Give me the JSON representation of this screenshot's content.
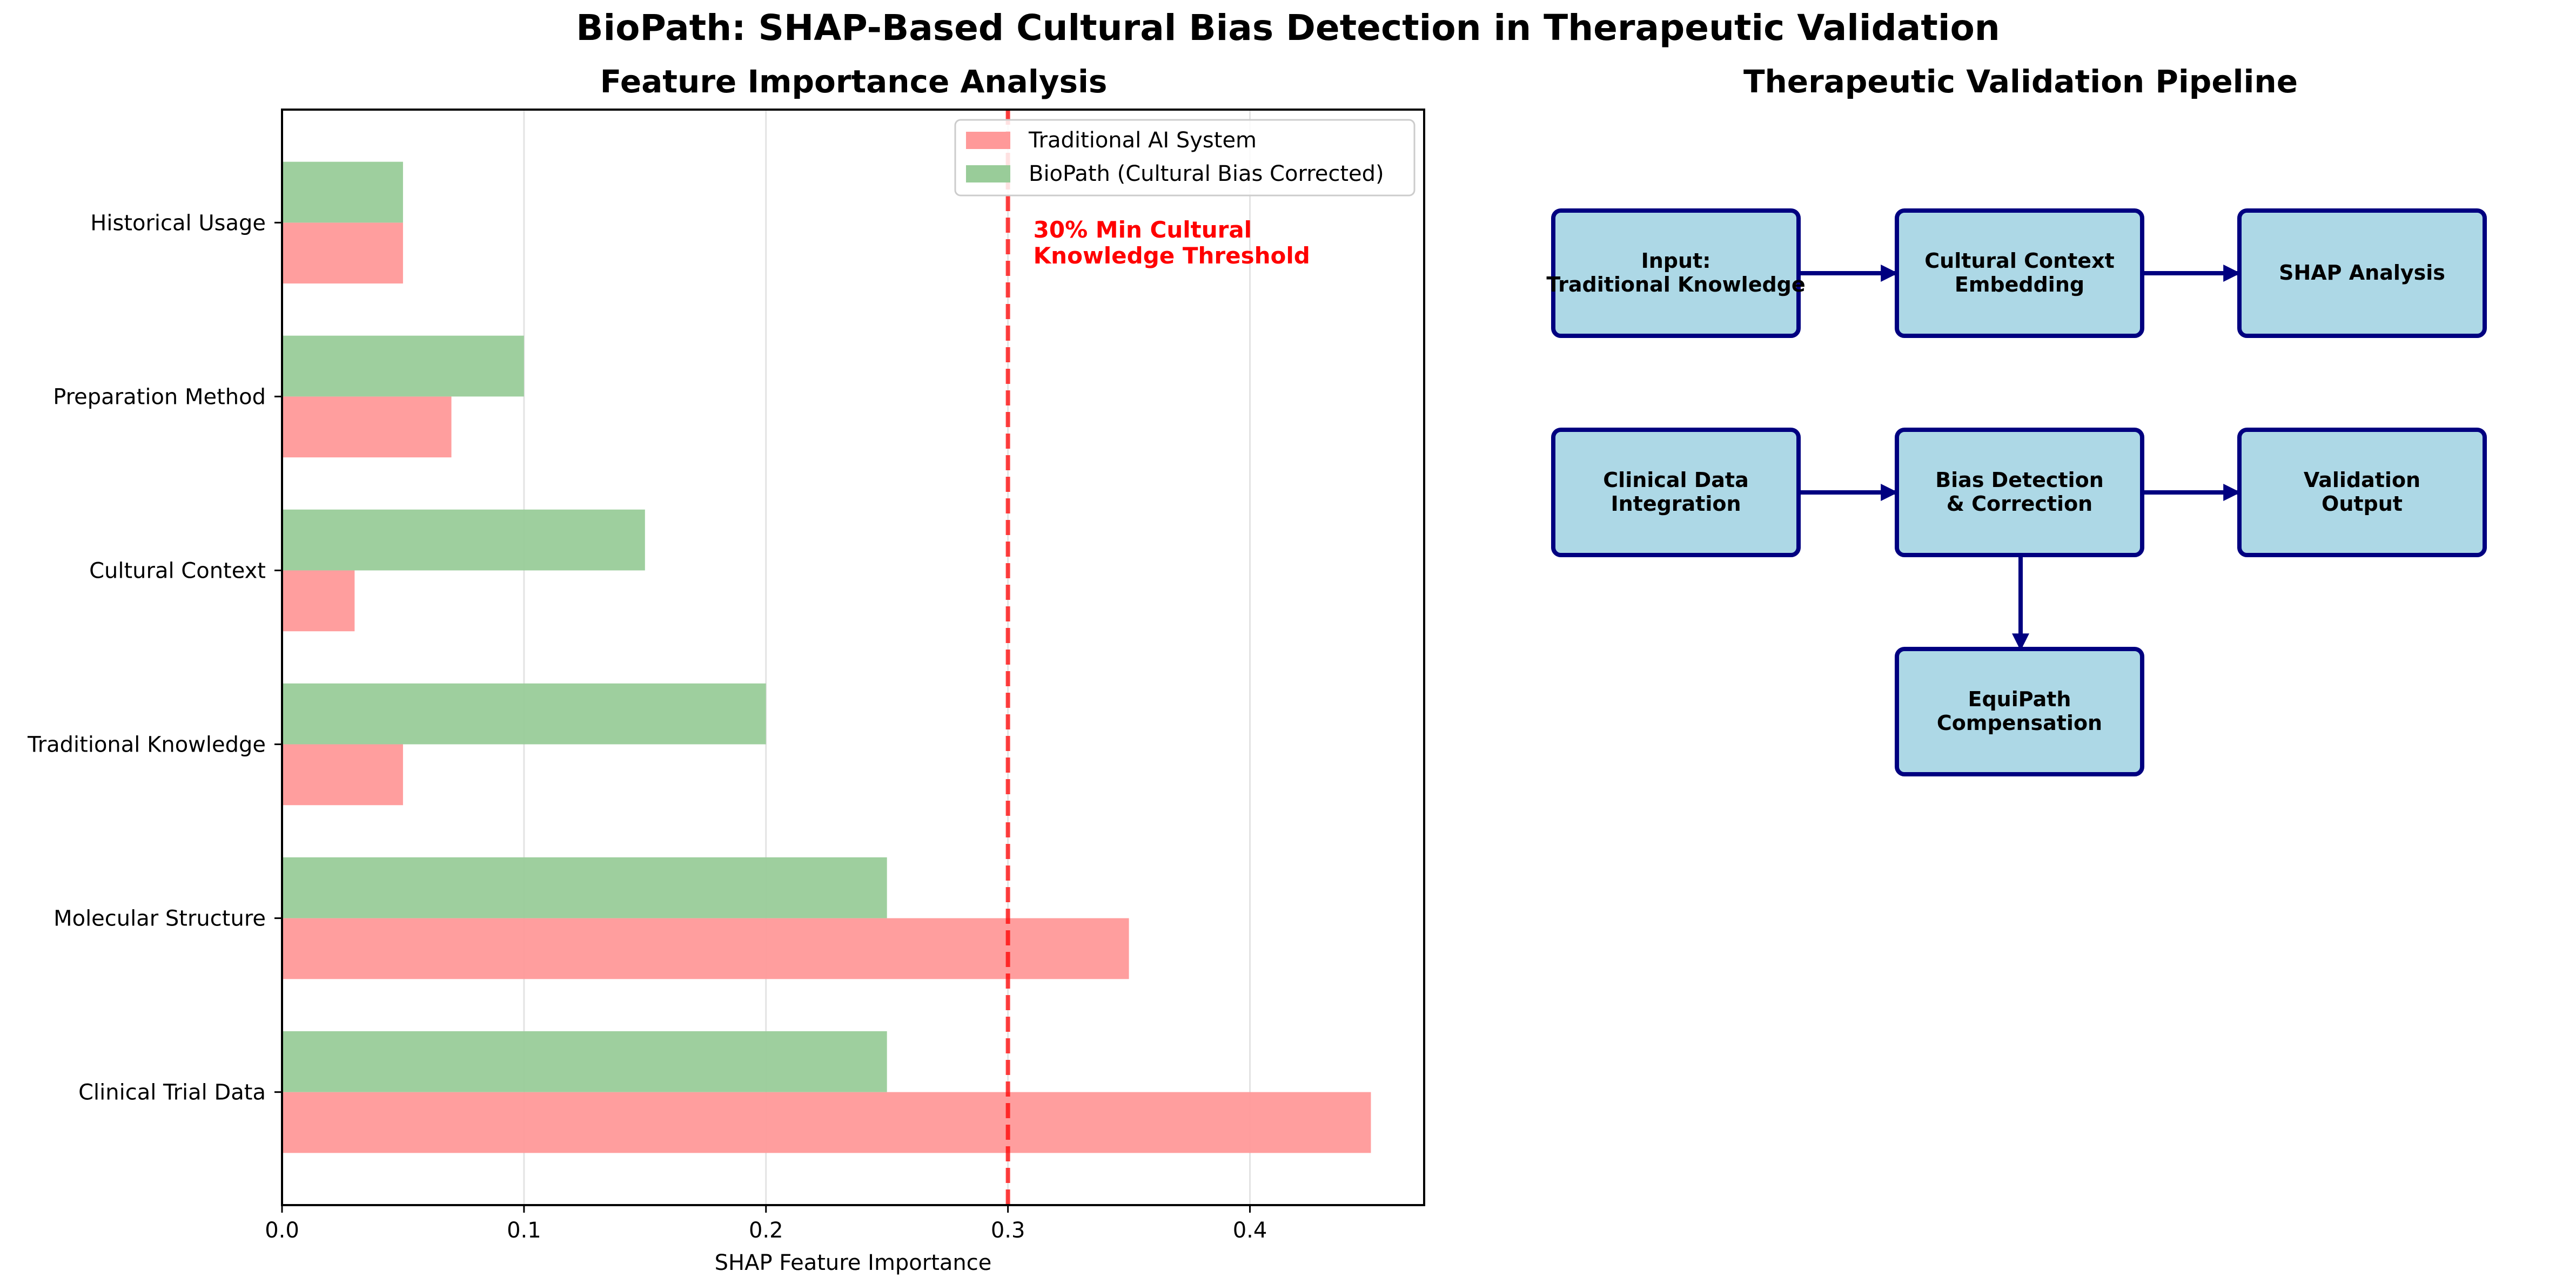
{
  "title": "BioPath: SHAP-Based Cultural Bias Detection in Therapeutic Validation",
  "chart_data": [
    {
      "type": "bar",
      "orientation": "horizontal",
      "title": "Feature Importance Analysis",
      "xlabel": "SHAP Feature Importance",
      "ylabel": "",
      "categories": [
        "Clinical Trial Data",
        "Molecular Structure",
        "Traditional Knowledge",
        "Cultural Context",
        "Preparation Method",
        "Historical Usage"
      ],
      "series": [
        {
          "name": "Traditional AI System",
          "values": [
            0.45,
            0.35,
            0.05,
            0.03,
            0.07,
            0.05
          ],
          "color": "#ff9999"
        },
        {
          "name": "BioPath (Cultural Bias Corrected)",
          "values": [
            0.25,
            0.25,
            0.2,
            0.15,
            0.1,
            0.05
          ],
          "color": "#99cc99"
        }
      ],
      "xlim": [
        0,
        0.472
      ],
      "xticks": [
        0.0,
        0.1,
        0.2,
        0.3,
        0.4
      ],
      "xtick_labels": [
        "0.0",
        "0.1",
        "0.2",
        "0.3",
        "0.4"
      ],
      "grid": "x",
      "legend": "top-right",
      "threshold": {
        "value": 0.3,
        "color": "#ff0000",
        "style": "dashed",
        "label": "30% Min Cultural\nKnowledge Threshold"
      }
    }
  ],
  "pipeline": {
    "title": "Therapeutic Validation Pipeline",
    "box_color": "#add8e6",
    "border_color": "#000080",
    "boxes": {
      "input": "Input:\nTraditional Knowledge",
      "cultural": "Cultural Context\nEmbedding",
      "shap": "SHAP Analysis",
      "clinical": "Clinical Data\nIntegration",
      "bias": "Bias Detection\n& Correction",
      "validation": "Validation\nOutput",
      "equipath": "EquiPath\nCompensation"
    }
  }
}
